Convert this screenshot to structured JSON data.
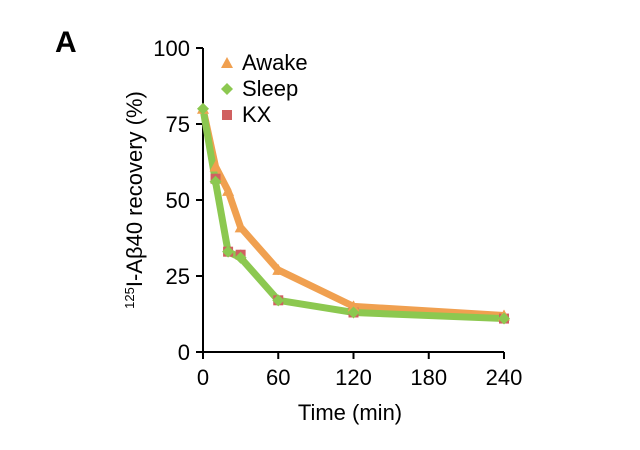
{
  "panel_label": "A",
  "chart_data": {
    "type": "line",
    "title": "",
    "xlabel": "Time (min)",
    "ylabel_sup": "125",
    "ylabel": "I-Aβ40 recovery (%)",
    "xlim": [
      0,
      240
    ],
    "ylim": [
      0,
      100
    ],
    "xticks": [
      0,
      60,
      120,
      180,
      240
    ],
    "yticks": [
      0,
      25,
      50,
      75,
      100
    ],
    "grid": false,
    "legend": "top-left",
    "series": [
      {
        "name": "Awake",
        "color": "#f0a050",
        "marker": "triangle",
        "x": [
          0,
          10,
          20,
          30,
          60,
          120,
          240
        ],
        "y": [
          80,
          61,
          53,
          41,
          27,
          15,
          12
        ]
      },
      {
        "name": "Sleep",
        "color": "#8cc850",
        "marker": "diamond",
        "x": [
          0,
          10,
          20,
          30,
          60,
          120,
          240
        ],
        "y": [
          80,
          56,
          33,
          31,
          17,
          13,
          11
        ]
      },
      {
        "name": "KX",
        "color": "#d06060",
        "marker": "square",
        "x": [
          10,
          20,
          30,
          60,
          120,
          240
        ],
        "y": [
          57,
          33,
          32,
          17,
          13,
          11
        ]
      }
    ]
  }
}
